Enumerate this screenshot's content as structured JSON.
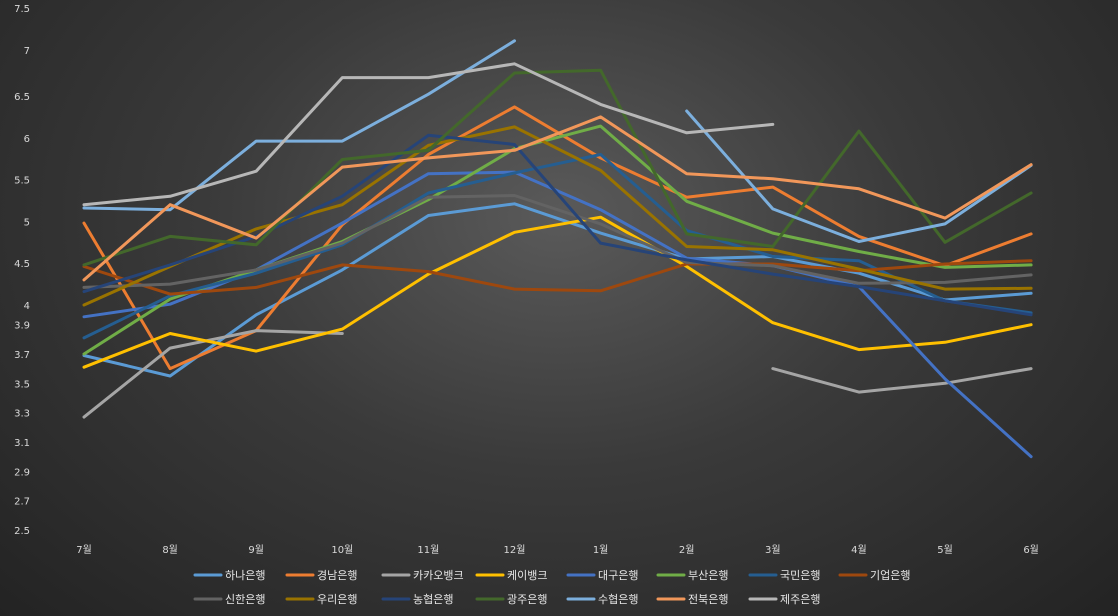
{
  "chart_data": {
    "type": "line",
    "title": "",
    "xlabel": "",
    "ylabel": "",
    "categories": [
      "7월",
      "8월",
      "9월",
      "10월",
      "11월",
      "12월",
      "1월",
      "2월",
      "3월",
      "4월",
      "5월",
      "6월"
    ],
    "y_ticks": [
      2.5,
      2.7,
      2.9,
      3.1,
      3.3,
      3.5,
      3.7,
      3.9,
      4,
      4.5,
      5,
      5.5,
      6,
      6.5,
      7,
      7.5
    ],
    "y_tick_labels": [
      "2.5",
      "2.7",
      "2.9",
      "3.1",
      "3.3",
      "3.5",
      "3.7",
      "3.9",
      "4",
      "4.5",
      "5",
      "5.5",
      "6",
      "6.5",
      "7",
      "7.5"
    ],
    "legend_position": "bottom",
    "grid": false,
    "series": [
      {
        "name": "하나은행",
        "color": "#5b9bd5",
        "values": [
          3.69,
          3.55,
          3.95,
          4.42,
          5.07,
          5.21,
          4.86,
          4.55,
          4.58,
          4.38,
          4.06,
          4.14
        ]
      },
      {
        "name": "경남은행",
        "color": "#ed7d31",
        "values": [
          4.98,
          3.6,
          3.86,
          4.96,
          5.8,
          6.37,
          5.76,
          5.29,
          5.41,
          4.82,
          4.47,
          4.85
        ]
      },
      {
        "name": "카카오뱅크",
        "color": "#a5a5a5",
        "values": [
          3.27,
          3.74,
          3.86,
          3.84,
          null,
          null,
          null,
          null,
          3.6,
          3.44,
          3.5,
          3.6
        ]
      },
      {
        "name": "케이뱅크",
        "color": "#ffc000",
        "values": [
          3.61,
          3.84,
          3.72,
          3.87,
          4.37,
          4.87,
          5.05,
          4.46,
          3.91,
          3.73,
          3.78,
          3.9
        ]
      },
      {
        "name": "대구은행",
        "color": "#4472c4",
        "values": [
          3.94,
          4.01,
          4.42,
          4.98,
          5.57,
          5.59,
          5.14,
          4.56,
          4.47,
          4.22,
          3.53,
          3
        ]
      },
      {
        "name": "부산은행",
        "color": "#70ad47",
        "values": [
          3.7,
          4.07,
          4.42,
          4.76,
          5.26,
          5.87,
          6.14,
          5.24,
          4.86,
          4.64,
          4.45,
          4.48
        ]
      },
      {
        "name": "국민은행",
        "color": "#255e91",
        "values": [
          3.81,
          4.11,
          4.38,
          4.72,
          5.34,
          5.58,
          5.8,
          4.89,
          4.58,
          4.53,
          4.05,
          3.96
        ]
      },
      {
        "name": "기업은행",
        "color": "#9e480e",
        "values": [
          4.46,
          4.13,
          4.21,
          4.48,
          4.4,
          4.19,
          4.17,
          4.49,
          4.49,
          4.41,
          4.49,
          4.53
        ]
      },
      {
        "name": "신한은행",
        "color": "#636363",
        "values": [
          4.21,
          4.25,
          4.42,
          4.74,
          5.29,
          5.31,
          4.97,
          4.51,
          4.47,
          4.26,
          4.27,
          4.36
        ]
      },
      {
        "name": "우리은행",
        "color": "#997300",
        "values": [
          4,
          4.46,
          4.91,
          5.2,
          5.91,
          6.13,
          5.61,
          4.7,
          4.66,
          4.43,
          4.19,
          4.2
        ]
      },
      {
        "name": "농협은행",
        "color": "#264478",
        "values": [
          4.16,
          4.48,
          4.82,
          5.3,
          6.03,
          5.92,
          4.74,
          4.54,
          4.37,
          4.22,
          4.05,
          3.95
        ]
      },
      {
        "name": "광주은행",
        "color": "#43682b",
        "values": [
          4.48,
          4.82,
          4.72,
          5.74,
          5.85,
          6.75,
          6.78,
          4.85,
          4.7,
          6.08,
          4.75,
          5.34
        ]
      },
      {
        "name": "수협은행",
        "color": "#7cafdd",
        "values": [
          5.16,
          5.14,
          5.96,
          5.96,
          6.52,
          7.11,
          null,
          6.32,
          5.15,
          4.76,
          4.97,
          5.67
        ]
      },
      {
        "name": "전북은행",
        "color": "#f1975a",
        "values": [
          4.3,
          5.2,
          4.8,
          5.65,
          5.76,
          5.85,
          6.25,
          5.57,
          5.51,
          5.39,
          5.04,
          5.68
        ]
      },
      {
        "name": "제주은행",
        "color": "#b7b7b7",
        "values": [
          5.2,
          5.3,
          5.6,
          6.7,
          6.7,
          6.85,
          6.4,
          6.06,
          6.16,
          null,
          null,
          null
        ]
      }
    ]
  }
}
